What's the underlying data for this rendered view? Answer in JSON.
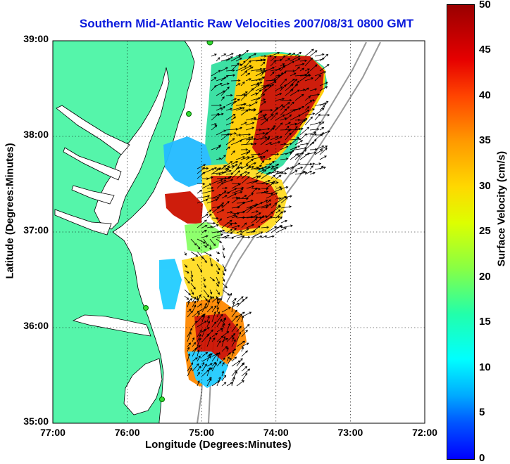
{
  "title": "Southern Mid-Atlantic Raw Velocities 2007/08/31 0800 GMT",
  "map": {
    "xlabel": "Longitude (Degrees:Minutes)",
    "ylabel": "Latitude (Degrees:Minutes)",
    "lon_ticks": [
      "77:00",
      "76:00",
      "75:00",
      "74:00",
      "73:00",
      "72:00"
    ],
    "lat_ticks": [
      "39:00",
      "38:00",
      "37:00",
      "36:00",
      "35:00"
    ],
    "lon_range": [
      -77,
      -72
    ],
    "lat_range": [
      35,
      39
    ],
    "land_color": "#55f5aa",
    "grid": "dotted"
  },
  "colorbar": {
    "label": "Surface Velocity (cm/s)",
    "ticks": [
      "50",
      "45",
      "40",
      "35",
      "30",
      "25",
      "20",
      "15",
      "10",
      "5",
      "0"
    ],
    "range": [
      0,
      50
    ],
    "colormap": "jet"
  }
}
